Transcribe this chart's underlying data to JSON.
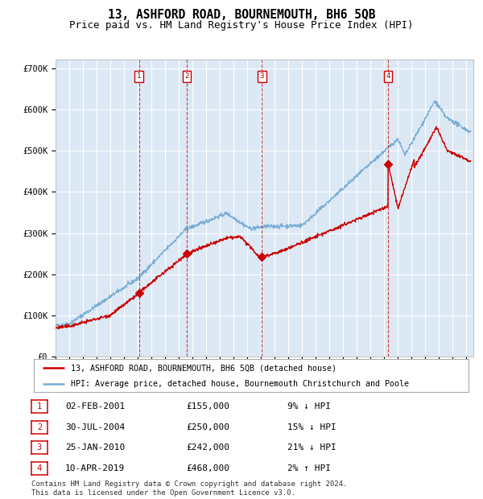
{
  "title": "13, ASHFORD ROAD, BOURNEMOUTH, BH6 5QB",
  "subtitle": "Price paid vs. HM Land Registry's House Price Index (HPI)",
  "ylim": [
    0,
    720000
  ],
  "yticks": [
    0,
    100000,
    200000,
    300000,
    400000,
    500000,
    600000,
    700000
  ],
  "ytick_labels": [
    "£0",
    "£100K",
    "£200K",
    "£300K",
    "£400K",
    "£500K",
    "£600K",
    "£700K"
  ],
  "background_color": "#ffffff",
  "plot_bg_color": "#dce9f5",
  "grid_color": "#ffffff",
  "sale_color": "#cc0000",
  "hpi_color": "#7aadd4",
  "sale_label": "13, ASHFORD ROAD, BOURNEMOUTH, BH6 5QB (detached house)",
  "hpi_label": "HPI: Average price, detached house, Bournemouth Christchurch and Poole",
  "transactions": [
    {
      "num": 1,
      "date": "02-FEB-2001",
      "year": 2001.09,
      "price": 155000,
      "hpi_pct": "9% ↓ HPI"
    },
    {
      "num": 2,
      "date": "30-JUL-2004",
      "year": 2004.58,
      "price": 250000,
      "hpi_pct": "15% ↓ HPI"
    },
    {
      "num": 3,
      "date": "25-JAN-2010",
      "year": 2010.07,
      "price": 242000,
      "hpi_pct": "21% ↓ HPI"
    },
    {
      "num": 4,
      "date": "10-APR-2019",
      "year": 2019.28,
      "price": 468000,
      "hpi_pct": "2% ↑ HPI"
    }
  ],
  "footer": "Contains HM Land Registry data © Crown copyright and database right 2024.\nThis data is licensed under the Open Government Licence v3.0.",
  "title_fontsize": 10.5,
  "subtitle_fontsize": 9,
  "table_fontsize": 8,
  "footer_fontsize": 6.5
}
